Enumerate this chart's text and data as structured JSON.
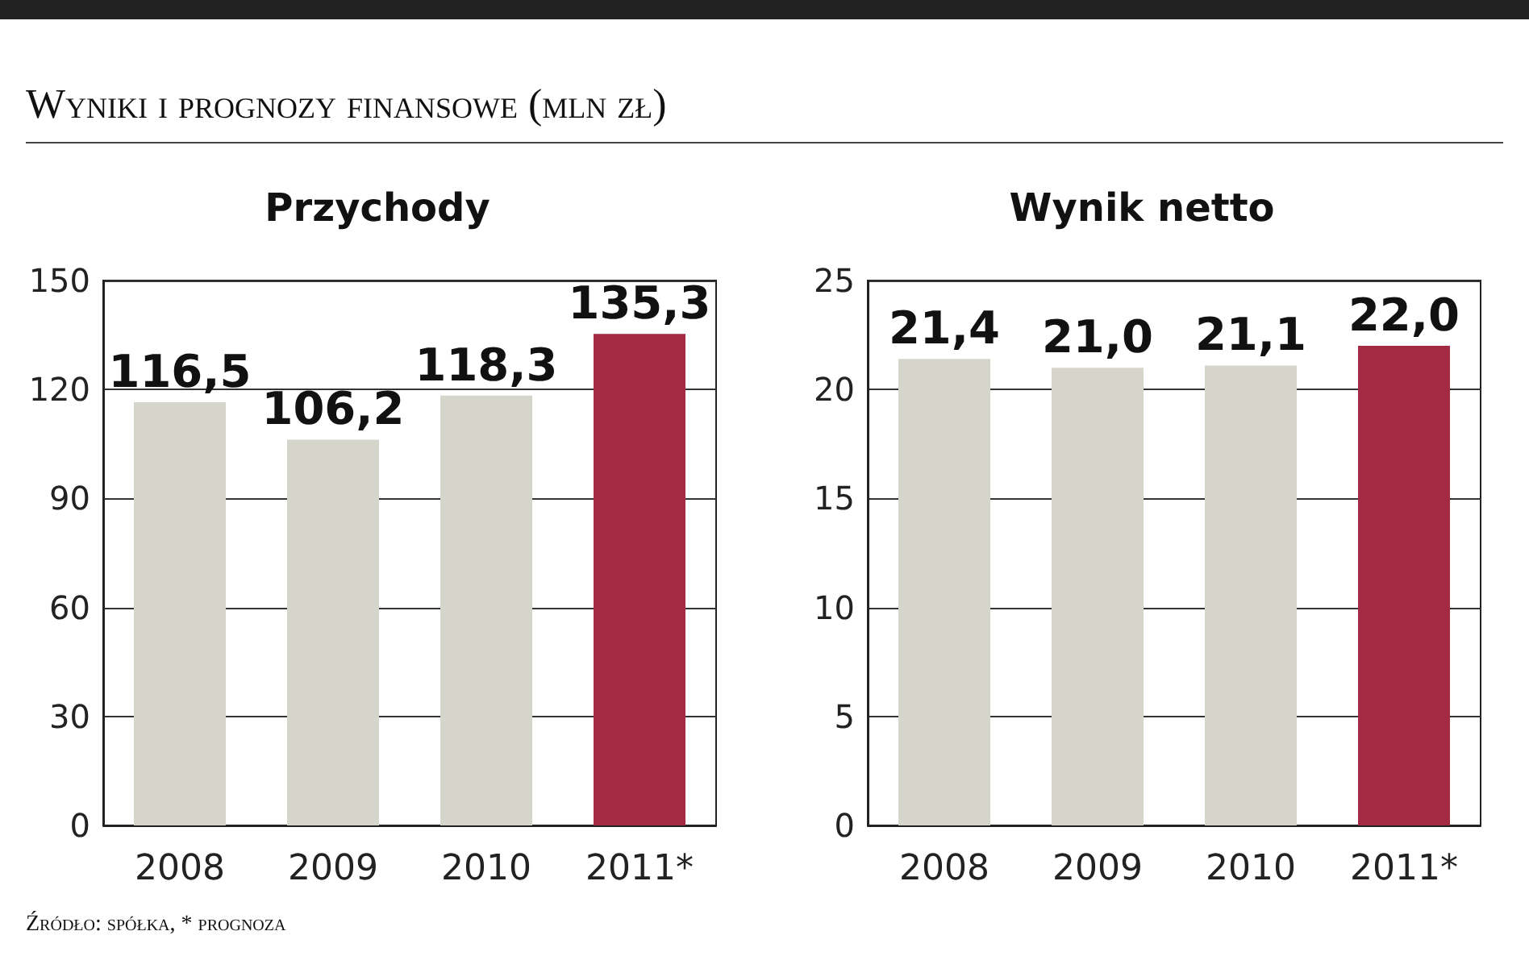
{
  "chart_data": [
    {
      "type": "bar",
      "title": "Przychody",
      "categories": [
        "2008",
        "2009",
        "2010",
        "2011*"
      ],
      "values": [
        116.5,
        106.2,
        118.3,
        135.3
      ],
      "colors": [
        "#d6d5cb",
        "#d6d5cb",
        "#d6d5cb",
        "#a32a43"
      ],
      "ylim": [
        0,
        150
      ],
      "yticks": [
        0,
        30,
        60,
        90,
        120,
        150
      ],
      "grid": "y",
      "value_labels": [
        "116,5",
        "106,2",
        "118,3",
        "135,3"
      ],
      "annotations": [
        "Wyniki i prognozy finansowe (mln zł)",
        "Źródło: spółka, * prognoza"
      ]
    },
    {
      "type": "bar",
      "title": "Wynik netto",
      "categories": [
        "2008",
        "2009",
        "2010",
        "2011*"
      ],
      "values": [
        21.4,
        21.0,
        21.1,
        22.0
      ],
      "colors": [
        "#d6d5cb",
        "#d6d5cb",
        "#d6d5cb",
        "#a32a43"
      ],
      "ylim": [
        0,
        25
      ],
      "yticks": [
        0,
        5,
        10,
        15,
        20,
        25
      ],
      "grid": "y",
      "value_labels": [
        "21,4",
        "21,0",
        "21,1",
        "22,0"
      ]
    }
  ]
}
